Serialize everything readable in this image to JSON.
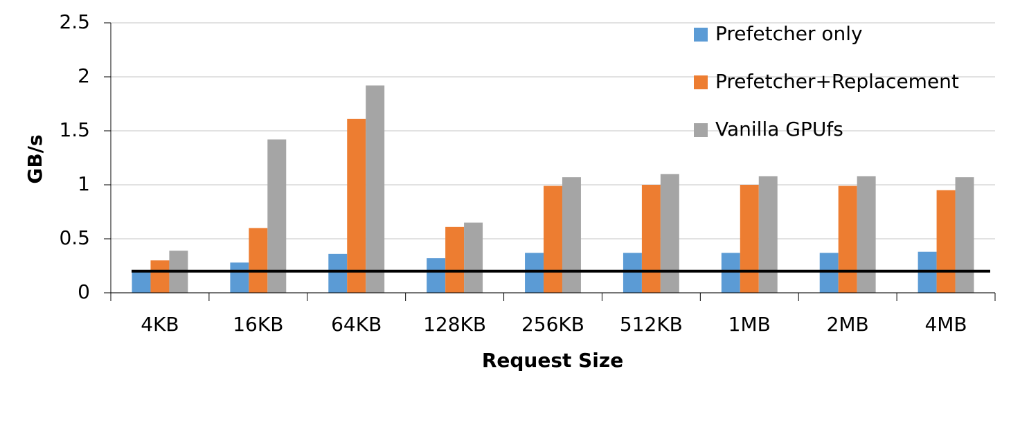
{
  "chart_data": {
    "type": "bar",
    "ylabel": "GB/s",
    "xlabel": "Request Size",
    "categories": [
      "4KB",
      "16KB",
      "64KB",
      "128KB",
      "256KB",
      "512KB",
      "1MB",
      "2MB",
      "4MB"
    ],
    "series": [
      {
        "name": "Prefetcher only",
        "color": "#5b9bd5",
        "values": [
          0.2,
          0.28,
          0.36,
          0.32,
          0.37,
          0.37,
          0.37,
          0.37,
          0.38
        ]
      },
      {
        "name": "Prefetcher+Replacement",
        "color": "#ed7d31",
        "values": [
          0.3,
          0.6,
          1.61,
          0.61,
          0.99,
          1.0,
          1.0,
          0.99,
          0.95
        ]
      },
      {
        "name": "Vanilla GPUfs",
        "color": "#a5a5a5",
        "values": [
          0.39,
          1.42,
          1.92,
          0.65,
          1.07,
          1.1,
          1.08,
          1.08,
          1.07
        ]
      }
    ],
    "reference_line": 0.2,
    "ylim": [
      0,
      2.5
    ],
    "yticks": [
      0,
      0.5,
      1,
      1.5,
      2,
      2.5
    ],
    "grid": true,
    "legend": "top-right"
  }
}
